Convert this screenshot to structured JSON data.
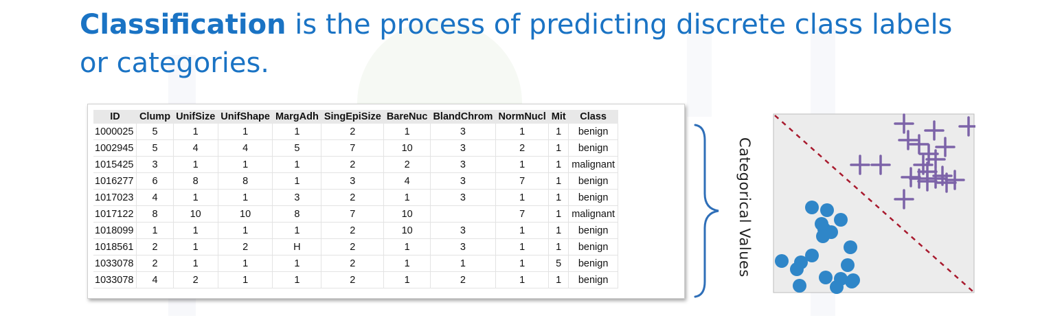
{
  "title": {
    "bold": "Classification",
    "rest": " is the process of predicting discrete class labels or categories."
  },
  "table": {
    "headers": [
      "ID",
      "Clump",
      "UnifSize",
      "UnifShape",
      "MargAdh",
      "SingEpiSize",
      "BareNuc",
      "BlandChrom",
      "NormNucl",
      "Mit",
      "Class"
    ],
    "rows": [
      [
        "1000025",
        "5",
        "1",
        "1",
        "1",
        "2",
        "1",
        "3",
        "1",
        "1",
        "benign"
      ],
      [
        "1002945",
        "5",
        "4",
        "4",
        "5",
        "7",
        "10",
        "3",
        "2",
        "1",
        "benign"
      ],
      [
        "1015425",
        "3",
        "1",
        "1",
        "1",
        "2",
        "2",
        "3",
        "1",
        "1",
        "malignant"
      ],
      [
        "1016277",
        "6",
        "8",
        "8",
        "1",
        "3",
        "4",
        "3",
        "7",
        "1",
        "benign"
      ],
      [
        "1017023",
        "4",
        "1",
        "1",
        "3",
        "2",
        "1",
        "3",
        "1",
        "1",
        "benign"
      ],
      [
        "1017122",
        "8",
        "10",
        "10",
        "8",
        "7",
        "10",
        "",
        "7",
        "1",
        "malignant"
      ],
      [
        "1018099",
        "1",
        "1",
        "1",
        "1",
        "2",
        "10",
        "3",
        "1",
        "1",
        "benign"
      ],
      [
        "1018561",
        "2",
        "1",
        "2",
        "H",
        "2",
        "1",
        "3",
        "1",
        "1",
        "benign"
      ],
      [
        "1033078",
        "2",
        "1",
        "1",
        "1",
        "2",
        "1",
        "1",
        "1",
        "5",
        "benign"
      ],
      [
        "1033078",
        "4",
        "2",
        "1",
        "1",
        "2",
        "1",
        "2",
        "1",
        "1",
        "benign"
      ]
    ]
  },
  "annotation": {
    "label": "Categorical Values"
  },
  "scatter": {
    "colors": {
      "circle": "#2f86c8",
      "plus": "#7c63a8",
      "divider": "#a81a2e",
      "background": "#ececec"
    }
  }
}
